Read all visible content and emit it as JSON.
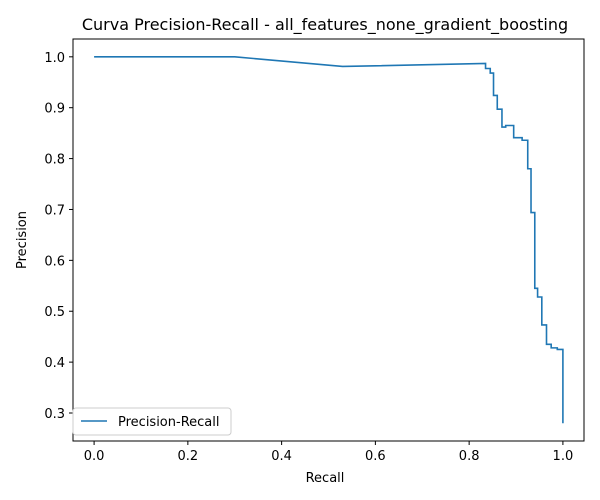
{
  "chart_data": {
    "type": "line",
    "title": "Curva Precision-Recall - all_features_none_gradient_boosting",
    "xlabel": "Recall",
    "ylabel": "Precision",
    "xlim": [
      -0.045,
      1.045
    ],
    "ylim": [
      0.245,
      1.035
    ],
    "xticks": [
      0.0,
      0.2,
      0.4,
      0.6,
      0.8,
      1.0
    ],
    "xtick_labels": [
      "0.0",
      "0.2",
      "0.4",
      "0.6",
      "0.8",
      "1.0"
    ],
    "yticks": [
      0.3,
      0.4,
      0.5,
      0.6,
      0.7,
      0.8,
      0.9,
      1.0
    ],
    "ytick_labels": [
      "0.3",
      "0.4",
      "0.5",
      "0.6",
      "0.7",
      "0.8",
      "0.9",
      "1.0"
    ],
    "grid": false,
    "legend_position": "lower-left",
    "colors": {
      "series": "#1f77b4"
    },
    "series": [
      {
        "name": "Precision-Recall",
        "x": [
          0.0,
          0.3,
          0.53,
          0.835,
          0.835,
          0.845,
          0.845,
          0.852,
          0.852,
          0.86,
          0.86,
          0.87,
          0.87,
          0.878,
          0.878,
          0.895,
          0.895,
          0.913,
          0.913,
          0.925,
          0.925,
          0.932,
          0.932,
          0.94,
          0.94,
          0.946,
          0.946,
          0.955,
          0.955,
          0.965,
          0.965,
          0.975,
          0.975,
          0.988,
          0.988,
          1.0,
          1.0
        ],
        "y": [
          1.0,
          1.0,
          0.981,
          0.987,
          0.977,
          0.977,
          0.968,
          0.968,
          0.924,
          0.924,
          0.897,
          0.897,
          0.862,
          0.862,
          0.865,
          0.865,
          0.841,
          0.841,
          0.836,
          0.836,
          0.78,
          0.78,
          0.694,
          0.694,
          0.545,
          0.545,
          0.528,
          0.528,
          0.473,
          0.473,
          0.435,
          0.435,
          0.428,
          0.428,
          0.425,
          0.425,
          0.28
        ]
      }
    ]
  }
}
